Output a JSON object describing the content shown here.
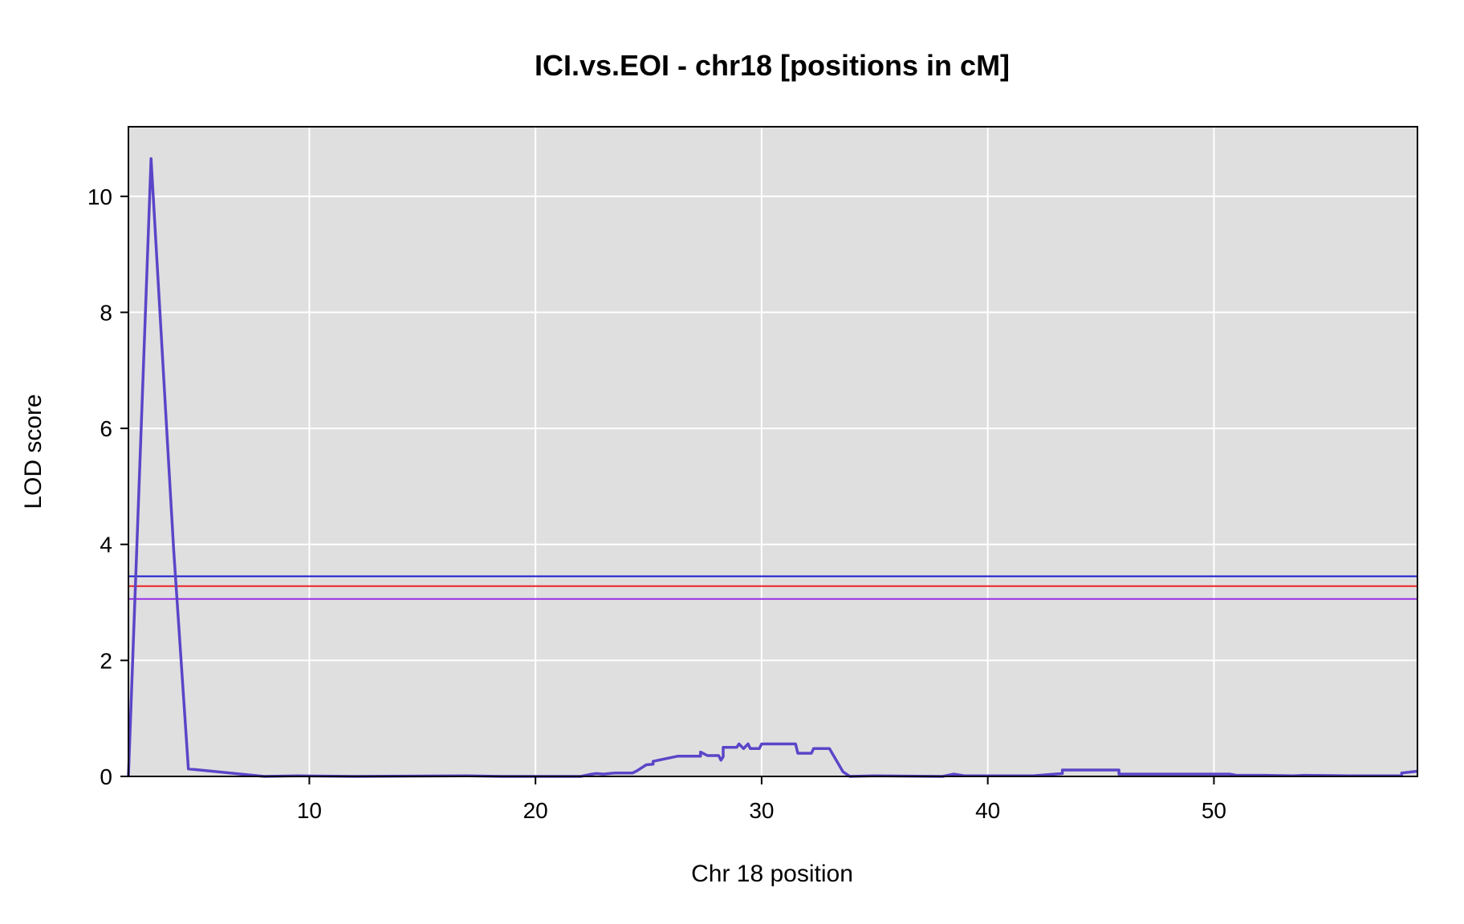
{
  "chart_data": {
    "type": "line",
    "title": "ICI.vs.EOI - chr18 [positions in cM]",
    "xlabel": "Chr 18 position",
    "ylabel": "LOD score",
    "xlim": [
      2.0,
      59.0
    ],
    "ylim": [
      0,
      11.2
    ],
    "xticks": [
      10,
      20,
      30,
      40,
      50
    ],
    "yticks": [
      0,
      2,
      4,
      6,
      8,
      10
    ],
    "grid": true,
    "colors": {
      "panel_bg": "#dfdfdf",
      "grid": "#ffffff",
      "lod_line": "#5b45c8"
    },
    "thresholds": [
      {
        "value": 3.45,
        "color": "#1a1acc"
      },
      {
        "value": 3.28,
        "color": "#ee2222"
      },
      {
        "value": 3.06,
        "color": "#9a2ee6"
      }
    ],
    "series": [
      {
        "x": [
          2.0,
          3.0,
          4.0,
          4.65,
          8.0,
          9.5,
          12.0,
          17.0,
          18.5,
          22.0,
          22.5,
          22.7,
          23.0,
          23.5,
          24.3,
          24.5,
          24.9,
          25.2,
          25.2,
          26.3,
          27.3,
          27.3,
          27.6,
          28.1,
          28.2,
          28.3,
          28.3,
          28.9,
          29.0,
          29.2,
          29.3,
          29.4,
          29.5,
          29.9,
          30.0,
          31.5,
          31.6,
          32.2,
          32.3,
          33.0,
          33.6,
          33.9,
          35.0,
          38.0,
          38.5,
          39.0,
          42.0,
          43.3,
          43.3,
          45.8,
          45.8,
          50.7,
          51.0,
          52.3,
          53.5,
          54.0,
          56.0,
          58.3,
          58.3,
          59.0
        ],
        "y": [
          0.0,
          10.65,
          3.9,
          0.13,
          0.0,
          0.01,
          0.0,
          0.01,
          0.0,
          0.0,
          0.04,
          0.05,
          0.04,
          0.06,
          0.06,
          0.1,
          0.2,
          0.21,
          0.26,
          0.35,
          0.35,
          0.42,
          0.36,
          0.36,
          0.28,
          0.34,
          0.5,
          0.5,
          0.56,
          0.48,
          0.52,
          0.56,
          0.48,
          0.48,
          0.56,
          0.56,
          0.4,
          0.4,
          0.48,
          0.48,
          0.08,
          0.0,
          0.01,
          0.0,
          0.04,
          0.01,
          0.01,
          0.05,
          0.11,
          0.11,
          0.04,
          0.04,
          0.02,
          0.02,
          0.01,
          0.02,
          0.01,
          0.01,
          0.06,
          0.09
        ]
      }
    ]
  }
}
